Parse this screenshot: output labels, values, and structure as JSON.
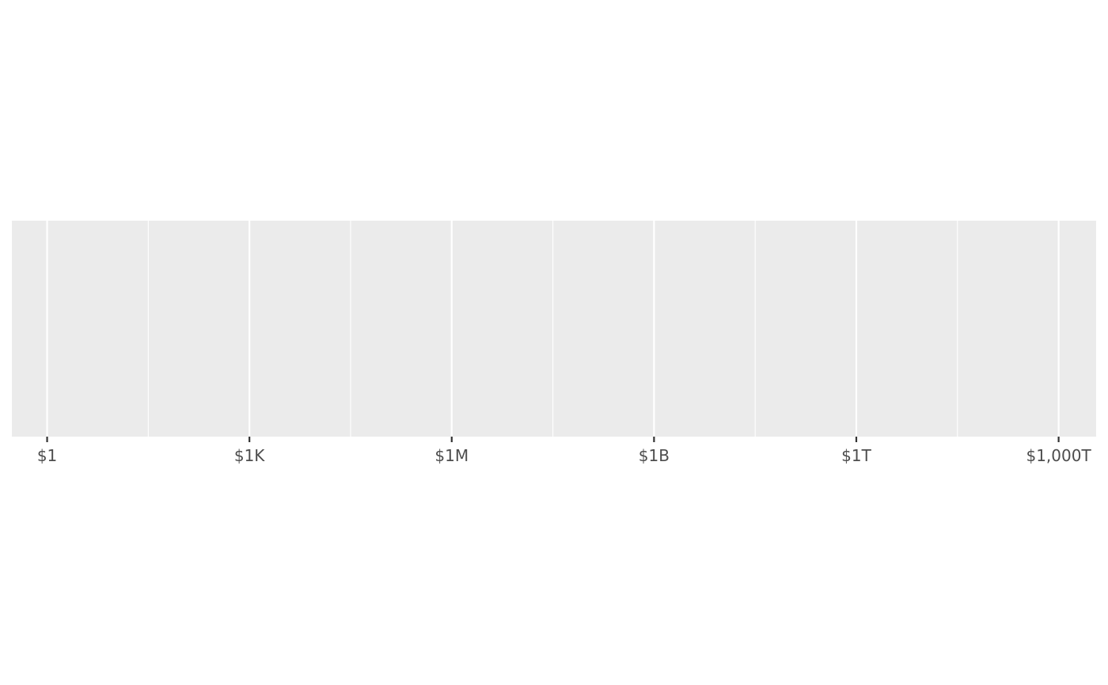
{
  "chart_data": {
    "type": "scatter",
    "title": "",
    "xlabel": "",
    "ylabel": "",
    "x_scale": "log10",
    "x_axis_unit": "dollars",
    "xlim": [
      0.3,
      3600000000000000
    ],
    "x_ticks": [
      {
        "value": 1,
        "label": "$1"
      },
      {
        "value": 1000,
        "label": "$1K"
      },
      {
        "value": 1000000,
        "label": "$1M"
      },
      {
        "value": 1000000000,
        "label": "$1B"
      },
      {
        "value": 1000000000000,
        "label": "$1T"
      },
      {
        "value": 1000000000000000,
        "label": "$1,000T"
      }
    ],
    "x_minor_gridlines": [
      31.6228,
      31622.8,
      31622800,
      31622800000,
      31622800000000,
      31622800000000000
    ],
    "y_axis_visible": false,
    "series": [],
    "grid": true,
    "colors": {
      "panel_background": "#ebebeb",
      "gridline": "#ffffff",
      "tick_mark": "#333333",
      "tick_label": "#4d4d4d"
    }
  }
}
